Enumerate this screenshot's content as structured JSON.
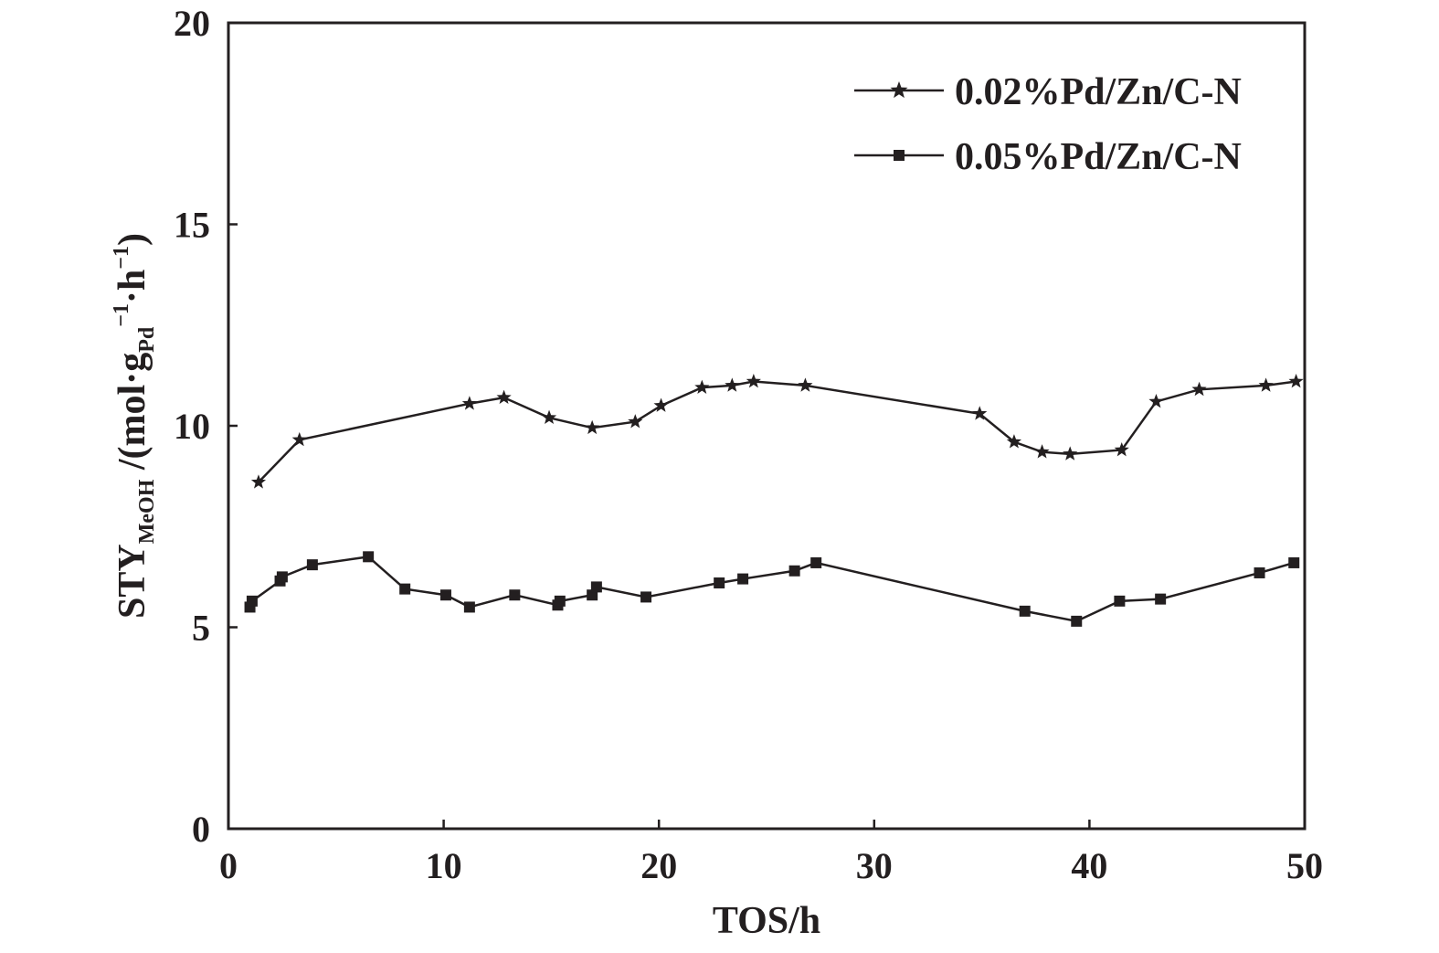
{
  "chart_data": {
    "type": "line",
    "title": "",
    "xlabel": "TOS/h",
    "ylabel": {
      "main": "STY",
      "sub": "MeOH",
      "unit_open": " /(mol·g",
      "unit_sub": "Pd",
      "unit_sup1": "−1",
      "unit_mid": "·h",
      "unit_sup2": "−1",
      "unit_close": ")"
    },
    "xlim": [
      0,
      50
    ],
    "ylim": [
      0,
      20
    ],
    "xticks": [
      "0",
      "10",
      "20",
      "30",
      "40",
      "50"
    ],
    "yticks": [
      "0",
      "5",
      "10",
      "15",
      "20"
    ],
    "grid": false,
    "legend_position": "top-right",
    "series": [
      {
        "name": "0.02%Pd/Zn/C-N",
        "marker": "star",
        "x": [
          1.4,
          3.3,
          11.2,
          12.8,
          14.9,
          16.9,
          18.9,
          20.1,
          22.0,
          23.4,
          24.4,
          26.8,
          34.9,
          36.5,
          37.8,
          39.1,
          41.5,
          43.1,
          45.1,
          48.2,
          49.6
        ],
        "y": [
          8.6,
          9.65,
          10.55,
          10.7,
          10.2,
          9.95,
          10.1,
          10.5,
          10.95,
          11.0,
          11.1,
          11.0,
          10.3,
          9.6,
          9.35,
          9.3,
          9.4,
          10.6,
          10.9,
          11.0,
          11.1
        ]
      },
      {
        "name": "0.05%Pd/Zn/C-N",
        "marker": "square",
        "x": [
          1.0,
          1.1,
          2.4,
          2.5,
          3.9,
          6.5,
          8.2,
          10.1,
          11.2,
          13.3,
          15.3,
          15.4,
          16.9,
          17.1,
          19.4,
          22.8,
          23.9,
          26.3,
          27.3,
          37.0,
          39.4,
          41.4,
          43.3,
          47.9,
          49.5
        ],
        "y": [
          5.5,
          5.65,
          6.15,
          6.25,
          6.55,
          6.75,
          5.95,
          5.8,
          5.5,
          5.8,
          5.55,
          5.65,
          5.8,
          6.0,
          5.75,
          6.1,
          6.2,
          6.4,
          6.6,
          5.4,
          5.15,
          5.65,
          5.7,
          6.35,
          6.6
        ]
      }
    ]
  }
}
